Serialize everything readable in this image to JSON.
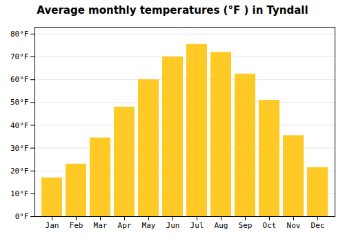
{
  "chart_data": {
    "type": "bar",
    "title": "Average monthly temperatures (°F ) in Tyndall",
    "categories": [
      "Jan",
      "Feb",
      "Mar",
      "Apr",
      "May",
      "Jun",
      "Jul",
      "Aug",
      "Sep",
      "Oct",
      "Nov",
      "Dec"
    ],
    "values": [
      17,
      23,
      34.5,
      48,
      60,
      70,
      75.5,
      72,
      62.5,
      51,
      35.5,
      21.5
    ],
    "color": "#FFC926",
    "ylim": [
      0,
      83
    ],
    "yticks": [
      {
        "value": 0,
        "label": "0°F"
      },
      {
        "value": 10,
        "label": "10°F"
      },
      {
        "value": 20,
        "label": "20°F"
      },
      {
        "value": 30,
        "label": "30°F"
      },
      {
        "value": 40,
        "label": "40°F"
      },
      {
        "value": 50,
        "label": "50°F"
      },
      {
        "value": 60,
        "label": "60°F"
      },
      {
        "value": 70,
        "label": "70°F"
      },
      {
        "value": 80,
        "label": "80°F"
      }
    ],
    "grid": true
  }
}
